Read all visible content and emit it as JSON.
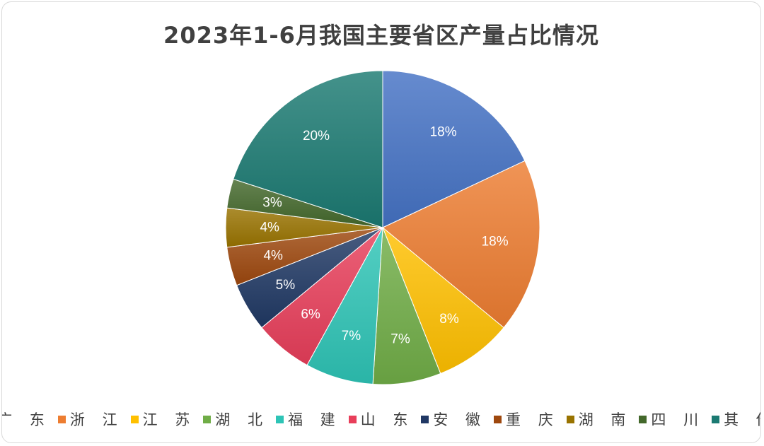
{
  "chart_data": {
    "type": "pie",
    "title": "2023年1-6月我国主要省区产量占比情况",
    "categories": [
      "广 东",
      "浙 江",
      "江 苏",
      "湖 北",
      "福 建",
      "山 东",
      "安 徽",
      "重 庆",
      "湖 南",
      "四 川",
      "其 他"
    ],
    "values": [
      18,
      18,
      8,
      7,
      7,
      6,
      5,
      4,
      4,
      3,
      20
    ],
    "labels": [
      "18%",
      "18%",
      "8%",
      "7%",
      "7%",
      "6%",
      "5%",
      "4%",
      "4%",
      "3%",
      "20%"
    ],
    "colors": [
      "#4472C4",
      "#ED7D31",
      "#FFC000",
      "#70AD47",
      "#2EC4B6",
      "#E83E5A",
      "#203864",
      "#9E480E",
      "#997300",
      "#43682B",
      "#1B7A72"
    ],
    "legend_position": "bottom"
  }
}
